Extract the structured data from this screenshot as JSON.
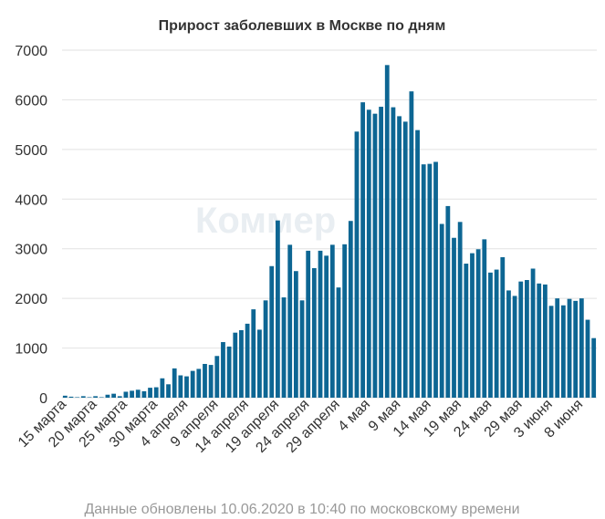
{
  "chart_data": {
    "type": "bar",
    "title": "Прирост заболевших в Москве по дням",
    "footnote": "Данные обновлены 10.06.2020 в 10:40 по московскому времени",
    "watermark": "Коммер",
    "xlabel": "",
    "ylabel": "",
    "ylim": [
      0,
      7000
    ],
    "yticks": [
      0,
      1000,
      2000,
      3000,
      4000,
      5000,
      6000,
      7000
    ],
    "grid": true,
    "bar_color": "#0d6693",
    "x_tick_labels": [
      {
        "label": "15 марта",
        "index": 0
      },
      {
        "label": "20 марта",
        "index": 5
      },
      {
        "label": "25 марта",
        "index": 10
      },
      {
        "label": "30 марта",
        "index": 15
      },
      {
        "label": "4 апреля",
        "index": 20
      },
      {
        "label": "9 апреля",
        "index": 25
      },
      {
        "label": "14 апреля",
        "index": 30
      },
      {
        "label": "19 апреля",
        "index": 35
      },
      {
        "label": "24 апреля",
        "index": 40
      },
      {
        "label": "29 апреля",
        "index": 45
      },
      {
        "label": "4 мая",
        "index": 50
      },
      {
        "label": "9 мая",
        "index": 55
      },
      {
        "label": "14 мая",
        "index": 60
      },
      {
        "label": "19 мая",
        "index": 65
      },
      {
        "label": "24 мая",
        "index": 70
      },
      {
        "label": "29 мая",
        "index": 75
      },
      {
        "label": "3 июня",
        "index": 80
      },
      {
        "label": "8 июня",
        "index": 85
      }
    ],
    "values": [
      40,
      20,
      10,
      30,
      10,
      30,
      10,
      60,
      80,
      30,
      120,
      140,
      160,
      130,
      200,
      210,
      390,
      270,
      590,
      450,
      430,
      540,
      580,
      680,
      660,
      840,
      1120,
      1030,
      1310,
      1360,
      1490,
      1780,
      1370,
      1960,
      2650,
      3570,
      2020,
      3080,
      2550,
      1960,
      2960,
      2610,
      2960,
      2860,
      3080,
      2220,
      3090,
      3560,
      5360,
      5950,
      5800,
      5720,
      5860,
      6700,
      5850,
      5670,
      5560,
      6170,
      5390,
      4700,
      4710,
      4750,
      3500,
      3860,
      3220,
      3540,
      2700,
      2910,
      2990,
      3190,
      2520,
      2580,
      2830,
      2160,
      2050,
      2340,
      2370,
      2600,
      2300,
      2280,
      1850,
      2000,
      1860,
      1990,
      1950,
      2000,
      1570,
      1200
    ]
  }
}
